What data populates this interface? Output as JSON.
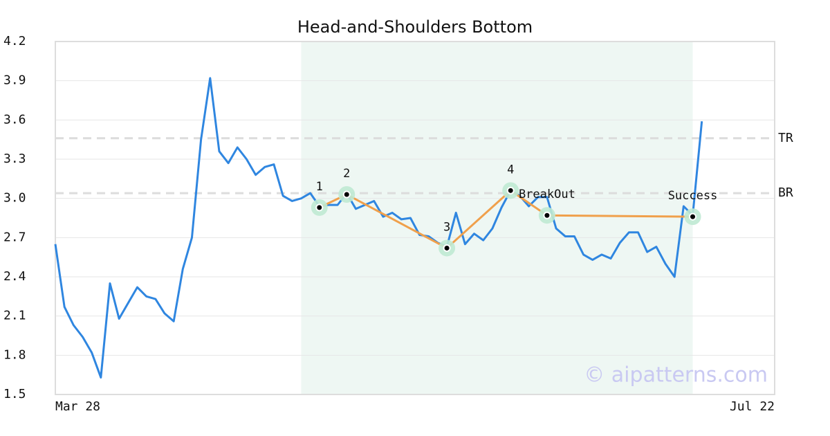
{
  "chart_data": {
    "type": "line",
    "title": "Head-and-Shoulders Bottom",
    "categories": [
      "Mar 28",
      null,
      null,
      null,
      null,
      null,
      null,
      null,
      null,
      null,
      null,
      null,
      null,
      null,
      null,
      null,
      null,
      null,
      null,
      null,
      null,
      null,
      null,
      null,
      null,
      null,
      null,
      null,
      null,
      null,
      null,
      null,
      null,
      null,
      null,
      null,
      null,
      null,
      null,
      null,
      null,
      null,
      null,
      null,
      null,
      null,
      null,
      null,
      null,
      null,
      null,
      null,
      null,
      null,
      null,
      null,
      null,
      null,
      null,
      null,
      null,
      null,
      null,
      null,
      null,
      null,
      null,
      null,
      null,
      null,
      null,
      null,
      null,
      null,
      null,
      null,
      null,
      null,
      null,
      "Jul 22"
    ],
    "series": [
      {
        "color": "#2f86e0",
        "values": [
          2.65,
          2.17,
          2.03,
          1.94,
          1.82,
          1.63,
          2.35,
          2.08,
          2.2,
          2.32,
          2.25,
          2.23,
          2.12,
          2.06,
          2.46,
          2.7,
          3.45,
          3.92,
          3.36,
          3.27,
          3.39,
          3.3,
          3.18,
          3.24,
          3.26,
          3.02,
          2.98,
          3.0,
          3.04,
          2.94,
          2.95,
          2.95,
          3.04,
          2.92,
          2.95,
          2.98,
          2.86,
          2.89,
          2.84,
          2.85,
          2.72,
          2.71,
          2.66,
          2.63,
          2.89,
          2.65,
          2.73,
          2.68,
          2.77,
          2.93,
          3.06,
          3.02,
          2.94,
          3.01,
          3.01,
          2.77,
          2.71,
          2.71,
          2.57,
          2.53,
          2.57,
          2.54,
          2.66,
          2.74,
          2.74,
          2.59,
          2.63,
          2.5,
          2.4,
          2.94,
          2.87,
          3.59,
          null,
          null,
          null,
          null,
          null,
          null,
          null,
          null
        ]
      }
    ],
    "pattern_points": [
      {
        "label": "1",
        "x": 29,
        "value": 2.93
      },
      {
        "label": "2",
        "x": 32,
        "value": 3.03
      },
      {
        "label": "3",
        "x": 43,
        "value": 2.62
      },
      {
        "label": "4",
        "x": 50,
        "value": 3.06
      },
      {
        "label": "BreakOut",
        "x": 54,
        "value": 2.87
      },
      {
        "label": "Success",
        "x": 70,
        "value": 2.86
      }
    ],
    "pattern_line_count": 5,
    "pattern_color": "#f0a04b",
    "highlight": {
      "from": 27,
      "to": 70,
      "color": "#eef7f3"
    },
    "levels": [
      {
        "label": "TR",
        "value": 3.46
      },
      {
        "label": "BR",
        "value": 3.04
      }
    ],
    "ylim": [
      1.5,
      4.2
    ],
    "yticks": [
      1.5,
      1.8,
      2.1,
      2.4,
      2.7,
      {
        "value": 3,
        "label": "3.0"
      },
      3.3,
      3.6,
      3.9,
      4.2
    ],
    "grid": true,
    "watermark": "© aipatterns.com"
  }
}
